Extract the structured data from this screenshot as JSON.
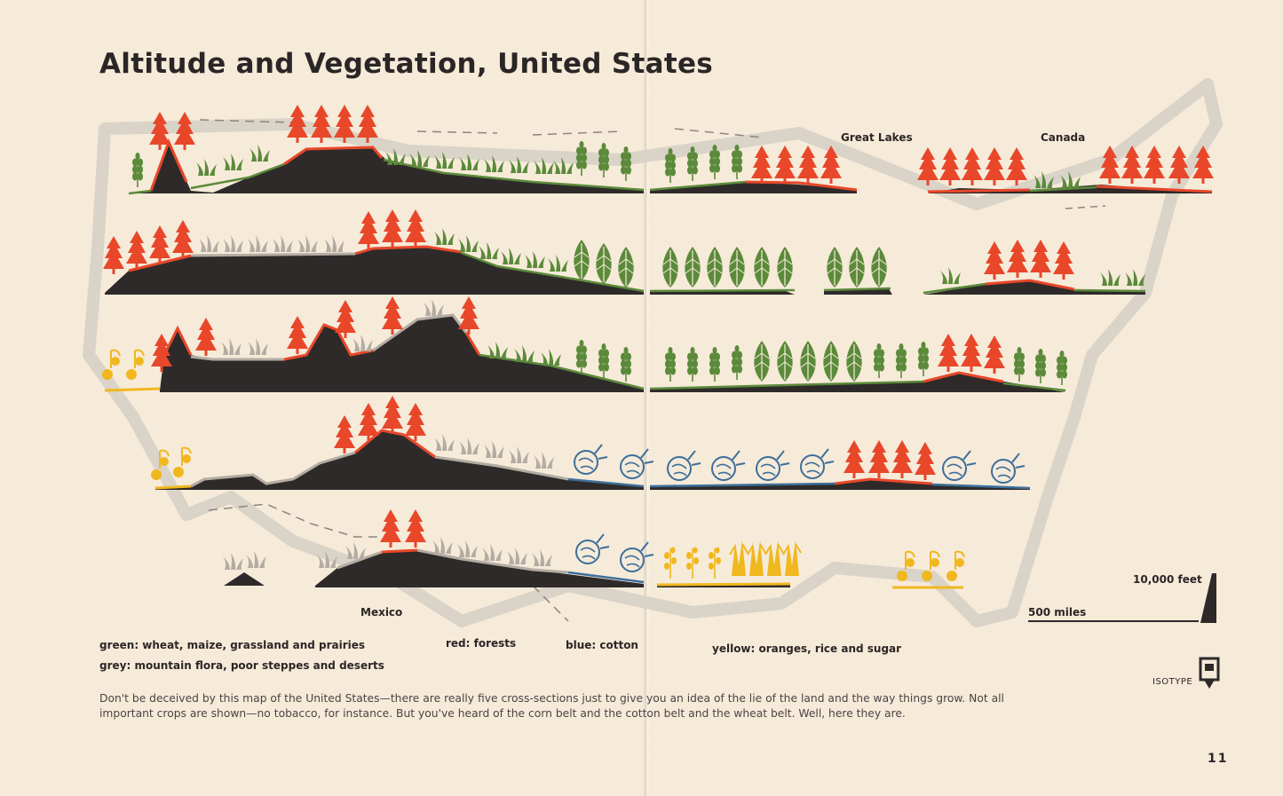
{
  "title": "Altitude and Vegetation, United States",
  "place_labels": {
    "great_lakes": "Great Lakes",
    "canada": "Canada",
    "mexico": "Mexico"
  },
  "scale": {
    "height_label": "10,000 feet",
    "distance_label": "500 miles"
  },
  "legend": {
    "green": "green: wheat, maize, grassland and prairies",
    "red": "red: forests",
    "blue": "blue: cotton",
    "yellow": "yellow: oranges, rice and sugar",
    "grey": "grey: mountain flora, poor steppes and deserts"
  },
  "caption": "Don't be deceived by this map of the United States—there are really five cross-sections just to give you an idea of the lie of the land and the way things grow.  Not all important crops are shown—no tobacco, for instance.  But you've heard of the corn belt and the cotton belt and the wheat belt.  Well, here they are.",
  "isotype_label": "ISOTYPE",
  "page_number": "11",
  "colors": {
    "paper": "#f6ead9",
    "terrain": "#2e2a2a",
    "green": "#5b8a3a",
    "red": "#e8472a",
    "blue": "#3d6f9a",
    "yellow": "#f0b81e",
    "grey": "#b3aca2"
  }
}
